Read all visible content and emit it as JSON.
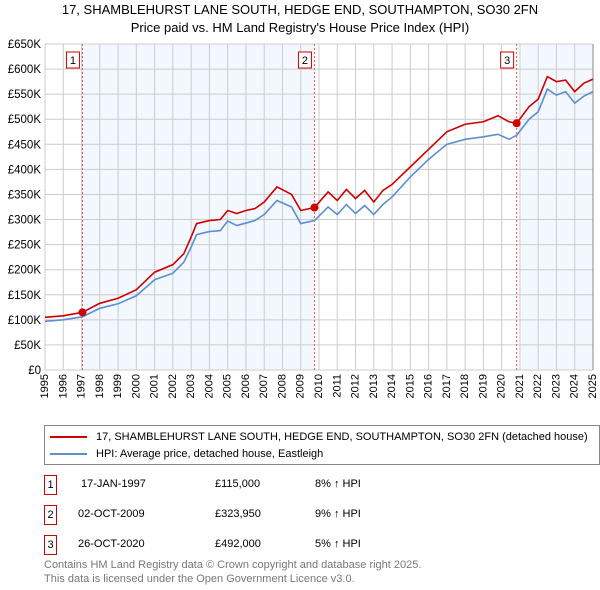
{
  "chart_data": {
    "type": "line",
    "title": "17, SHAMBLEHURST LANE SOUTH, HEDGE END, SOUTHAMPTON, SO30 2FN",
    "subtitle": "Price paid vs. HM Land Registry's House Price Index (HPI)",
    "xlim": [
      1995,
      2025
    ],
    "ylim": [
      0,
      650000
    ],
    "x_ticks": [
      "1995",
      "1996",
      "1997",
      "1998",
      "1999",
      "2000",
      "2001",
      "2002",
      "2003",
      "2004",
      "2005",
      "2006",
      "2007",
      "2008",
      "2009",
      "2010",
      "2011",
      "2012",
      "2013",
      "2014",
      "2015",
      "2016",
      "2017",
      "2018",
      "2019",
      "2020",
      "2021",
      "2022",
      "2023",
      "2024",
      "2025"
    ],
    "y_ticks": [
      "£0",
      "£50K",
      "£100K",
      "£150K",
      "£200K",
      "£250K",
      "£300K",
      "£350K",
      "£400K",
      "£450K",
      "£500K",
      "£550K",
      "£600K",
      "£650K"
    ],
    "grid": true,
    "series": [
      {
        "name": "17, SHAMBLEHURST LANE SOUTH, HEDGE END, SOUTHAMPTON, SO30 2FN (detached house)",
        "color": "#cc0000",
        "x": [
          1995,
          1996,
          1997.05,
          1998,
          1999,
          2000,
          2001,
          2002,
          2002.6,
          2003,
          2003.3,
          2004,
          2004.6,
          2005,
          2005.5,
          2006,
          2006.5,
          2007,
          2007.7,
          2008.5,
          2009,
          2009.75,
          2010.5,
          2011,
          2011.5,
          2012,
          2012.5,
          2013,
          2013.5,
          2014,
          2015,
          2016,
          2017,
          2018,
          2019,
          2019.8,
          2020.4,
          2020.82,
          2021.5,
          2022,
          2022.5,
          2023,
          2023.5,
          2024,
          2024.5,
          2025
        ],
        "y": [
          105000,
          108000,
          115000,
          133000,
          143000,
          160000,
          195000,
          210000,
          232000,
          265000,
          292000,
          298000,
          300000,
          318000,
          312000,
          318000,
          322000,
          335000,
          365000,
          350000,
          318000,
          323950,
          355000,
          338000,
          360000,
          342000,
          358000,
          335000,
          358000,
          370000,
          405000,
          440000,
          475000,
          490000,
          495000,
          507000,
          495000,
          492000,
          525000,
          540000,
          585000,
          575000,
          578000,
          555000,
          572000,
          580000
        ]
      },
      {
        "name": "HPI: Average price, detached house, Eastleigh",
        "color": "#5b8fd0",
        "x": [
          1995,
          1996,
          1997.05,
          1998,
          1999,
          2000,
          2001,
          2002,
          2002.6,
          2003,
          2003.3,
          2004,
          2004.6,
          2005,
          2005.5,
          2006,
          2006.5,
          2007,
          2007.7,
          2008.5,
          2009,
          2009.75,
          2010.5,
          2011,
          2011.5,
          2012,
          2012.5,
          2013,
          2013.5,
          2014,
          2015,
          2016,
          2017,
          2018,
          2019,
          2019.8,
          2020.4,
          2020.82,
          2021.5,
          2022,
          2022.5,
          2023,
          2023.5,
          2024,
          2024.5,
          2025
        ],
        "y": [
          97000,
          100000,
          106000,
          123000,
          132000,
          148000,
          180000,
          193000,
          215000,
          245000,
          270000,
          276000,
          278000,
          297000,
          288000,
          293000,
          298000,
          310000,
          338000,
          325000,
          292000,
          298000,
          325000,
          310000,
          330000,
          312000,
          328000,
          310000,
          330000,
          345000,
          385000,
          420000,
          450000,
          460000,
          465000,
          470000,
          460000,
          468000,
          500000,
          515000,
          560000,
          548000,
          555000,
          532000,
          546000,
          555000
        ]
      }
    ],
    "sales": [
      {
        "label": "1",
        "x": 1997.05,
        "y": 115000,
        "date": "17-JAN-1997",
        "price": "£115,000",
        "hpi": "8% ↑ HPI"
      },
      {
        "label": "2",
        "x": 2009.75,
        "y": 323950,
        "date": "02-OCT-2009",
        "price": "£323,950",
        "hpi": "9% ↑ HPI"
      },
      {
        "label": "3",
        "x": 2020.82,
        "y": 492000,
        "date": "26-OCT-2020",
        "price": "£492,000",
        "hpi": "5% ↑ HPI"
      }
    ]
  },
  "footer": {
    "line1": "Contains HM Land Registry data © Crown copyright and database right 2025.",
    "line2": "This data is licensed under the Open Government Licence v3.0."
  }
}
